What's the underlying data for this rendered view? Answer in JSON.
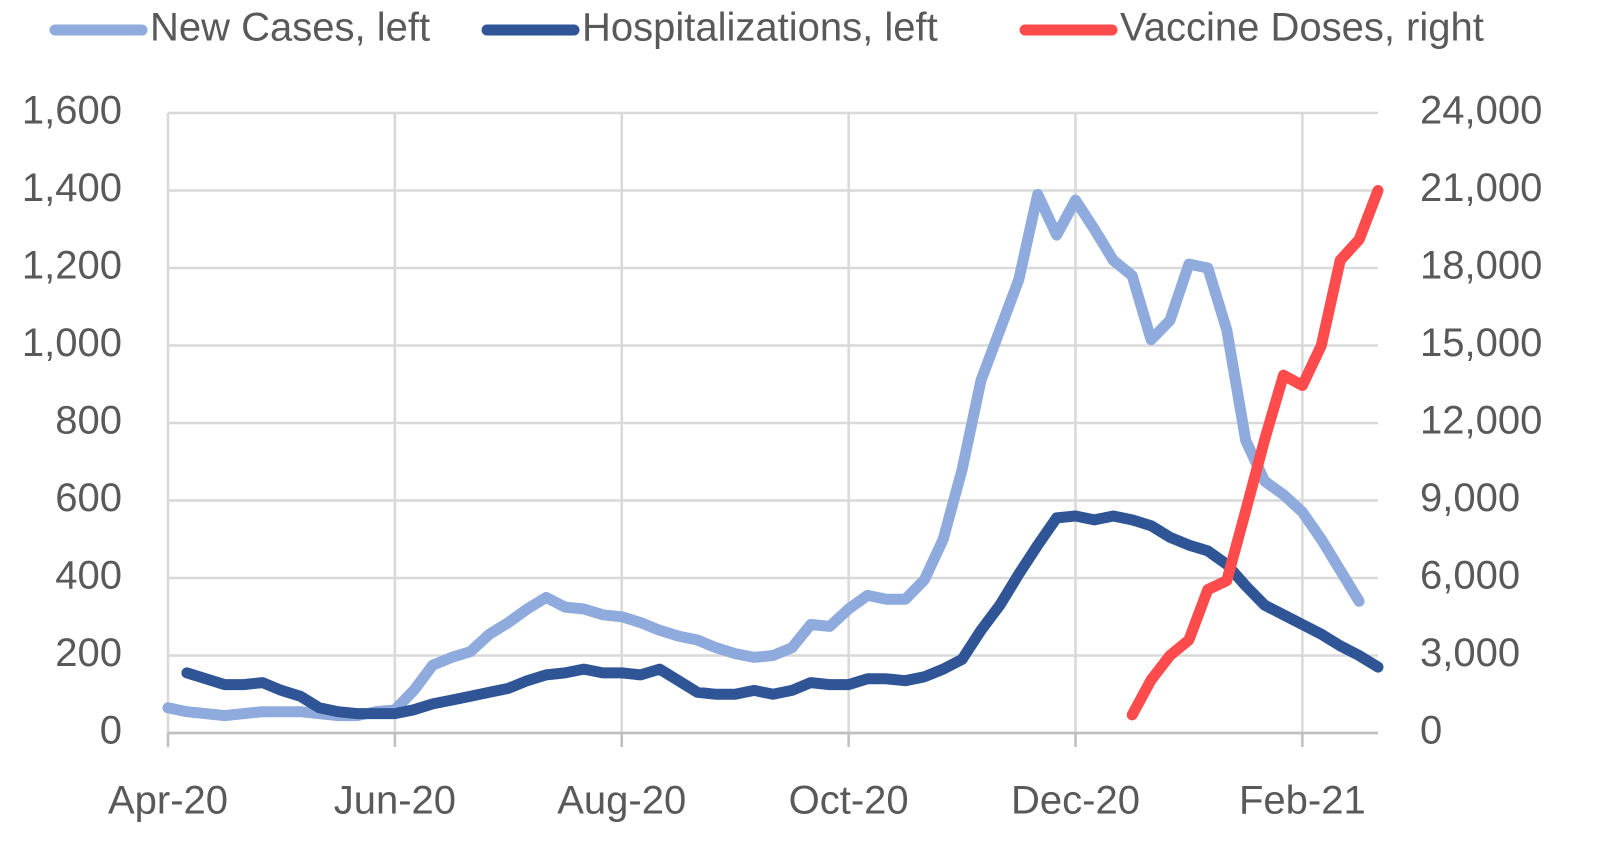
{
  "chart_data": {
    "type": "line",
    "categories": [
      "Apr-20",
      null,
      null,
      null,
      null,
      null,
      null,
      null,
      null,
      null,
      null,
      null,
      "Jun-20",
      null,
      null,
      null,
      null,
      null,
      null,
      null,
      null,
      null,
      null,
      null,
      "Aug-20",
      null,
      null,
      null,
      null,
      null,
      null,
      null,
      null,
      null,
      null,
      null,
      "Oct-20",
      null,
      null,
      null,
      null,
      null,
      null,
      null,
      null,
      null,
      null,
      null,
      "Dec-20",
      null,
      null,
      null,
      null,
      null,
      null,
      null,
      null,
      null,
      null,
      null,
      "Feb-21",
      null,
      null,
      null,
      null
    ],
    "series": [
      {
        "name": "New Cases, left",
        "color": "#8faadc",
        "axis": "y",
        "values": [
          65,
          55,
          50,
          45,
          50,
          55,
          55,
          55,
          50,
          45,
          45,
          55,
          60,
          110,
          175,
          195,
          210,
          255,
          285,
          320,
          350,
          325,
          320,
          305,
          300,
          285,
          265,
          250,
          240,
          220,
          205,
          195,
          200,
          220,
          280,
          275,
          320,
          355,
          345,
          345,
          395,
          500,
          680,
          910,
          1040,
          1170,
          1390,
          1285,
          1375,
          1300,
          1220,
          1180,
          1015,
          1065,
          1210,
          1200,
          1040,
          755,
          650,
          615,
          570,
          500,
          420,
          340,
          null
        ]
      },
      {
        "name": "Hospitalizations, left",
        "color": "#2f5597",
        "axis": "y",
        "values": [
          null,
          155,
          140,
          125,
          125,
          130,
          110,
          95,
          65,
          55,
          50,
          50,
          50,
          60,
          75,
          85,
          95,
          105,
          115,
          135,
          150,
          155,
          165,
          155,
          155,
          150,
          165,
          135,
          105,
          100,
          100,
          110,
          100,
          110,
          130,
          125,
          125,
          140,
          140,
          135,
          145,
          165,
          190,
          265,
          330,
          410,
          485,
          555,
          560,
          550,
          560,
          550,
          535,
          505,
          485,
          470,
          435,
          380,
          330,
          305,
          280,
          255,
          225,
          200,
          170
        ]
      },
      {
        "name": "Vaccine Doses, right",
        "color": "#ff4b4b",
        "axis": "y2",
        "values": [
          null,
          null,
          null,
          null,
          null,
          null,
          null,
          null,
          null,
          null,
          null,
          null,
          null,
          null,
          null,
          null,
          null,
          null,
          null,
          null,
          null,
          null,
          null,
          null,
          null,
          null,
          null,
          null,
          null,
          null,
          null,
          null,
          null,
          null,
          null,
          null,
          null,
          null,
          null,
          null,
          null,
          null,
          null,
          null,
          null,
          null,
          null,
          null,
          null,
          null,
          null,
          700,
          2050,
          3000,
          3600,
          5550,
          5900,
          8600,
          11350,
          13850,
          13450,
          15000,
          18300,
          19100,
          21000
        ]
      }
    ],
    "ylim": [
      0,
      1600
    ],
    "yticks": [
      0,
      200,
      400,
      600,
      800,
      {
        "value": 1000,
        "label": "1,000"
      },
      {
        "value": 1200,
        "label": "1,200"
      },
      {
        "value": 1400,
        "label": "1,400"
      },
      {
        "value": 1600,
        "label": "1,600"
      }
    ],
    "y2lim": [
      0,
      24000
    ],
    "y2ticks": [
      0,
      {
        "value": 3000,
        "label": "3,000"
      },
      {
        "value": 6000,
        "label": "6,000"
      },
      {
        "value": 9000,
        "label": "9,000"
      },
      {
        "value": 12000,
        "label": "12,000"
      },
      {
        "value": 15000,
        "label": "15,000"
      },
      {
        "value": 18000,
        "label": "18,000"
      },
      {
        "value": 21000,
        "label": "21,000"
      },
      {
        "value": 24000,
        "label": "24,000"
      }
    ],
    "grid": true,
    "legend": "top"
  }
}
